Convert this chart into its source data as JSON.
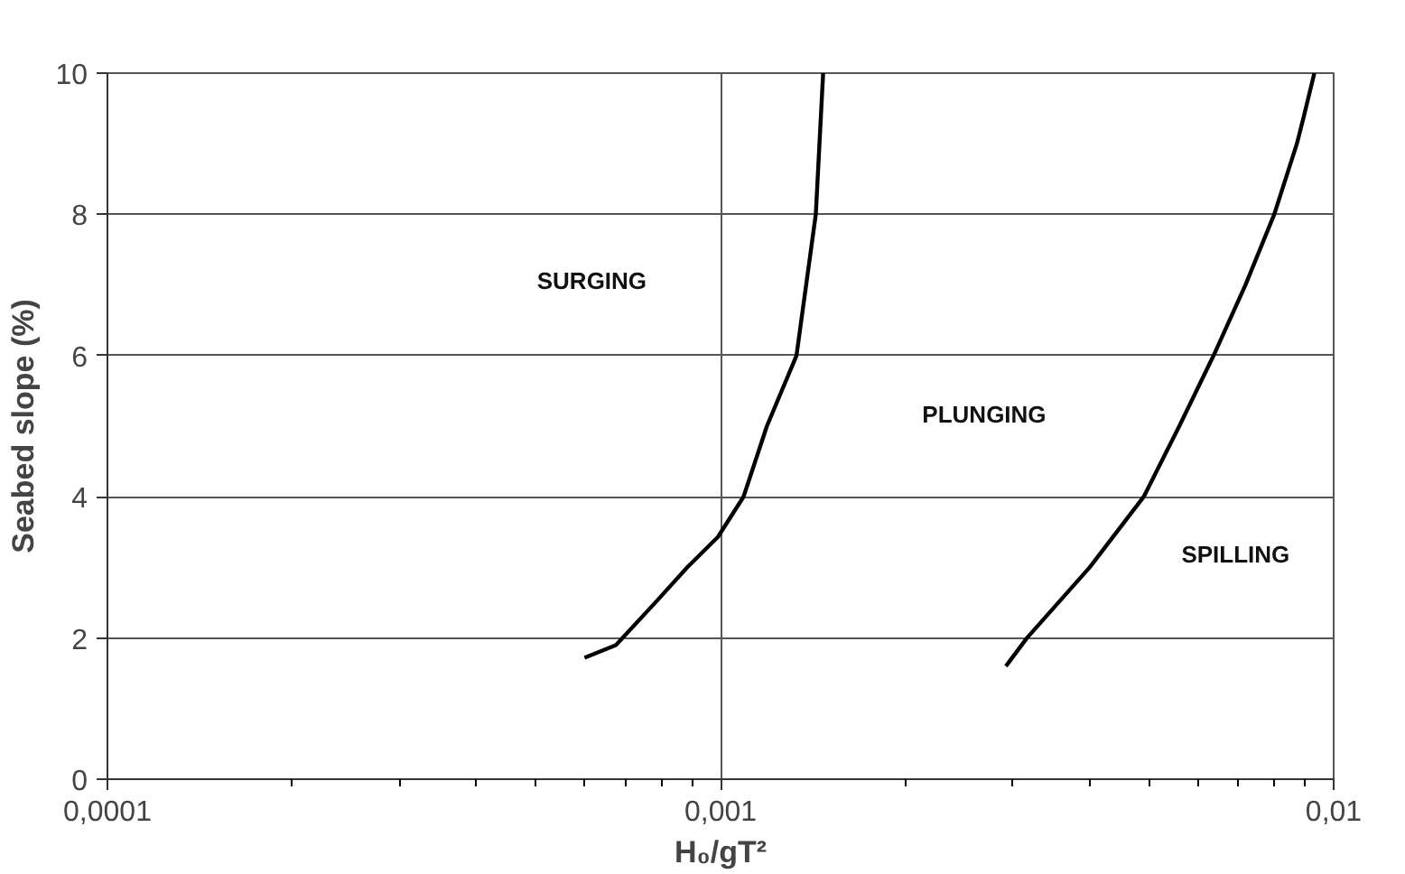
{
  "chart_data": {
    "type": "line",
    "xlabel": "H₀/gT²",
    "ylabel": "Seabed slope (%)",
    "log": "x",
    "xlim": [
      0.0001,
      0.01
    ],
    "ylim": [
      0,
      10
    ],
    "xticks": [
      {
        "value": 0.0001,
        "label": "0,0001"
      },
      {
        "value": 0.001,
        "label": "0,001"
      },
      {
        "value": 0.01,
        "label": "0,01"
      }
    ],
    "yticks": [
      0,
      2,
      4,
      6,
      8,
      10
    ],
    "grid": true,
    "marker": "none",
    "line_style": "solid",
    "series": [
      {
        "color": "#000000",
        "x": [
          0.0006,
          0.000675,
          0.00079,
          0.00088,
          0.00099,
          0.00109,
          0.00119,
          0.00133,
          0.00143,
          0.00147
        ],
        "values": [
          1.72,
          1.9,
          2.54,
          2.99,
          3.43,
          4.0,
          5.0,
          6.0,
          8.0,
          10.0
        ]
      },
      {
        "color": "#000000",
        "x": [
          0.00292,
          0.00316,
          0.004,
          0.0049,
          0.0056,
          0.00637,
          0.00718,
          0.008,
          0.00871,
          0.00893,
          0.0093
        ],
        "values": [
          1.6,
          2.0,
          3.0,
          4.0,
          5.0,
          6.0,
          7.0,
          8.0,
          9.0,
          9.37,
          10.0
        ]
      }
    ],
    "annotations": [
      "SURGING",
      "PLUNGING",
      "SPILLING"
    ]
  }
}
